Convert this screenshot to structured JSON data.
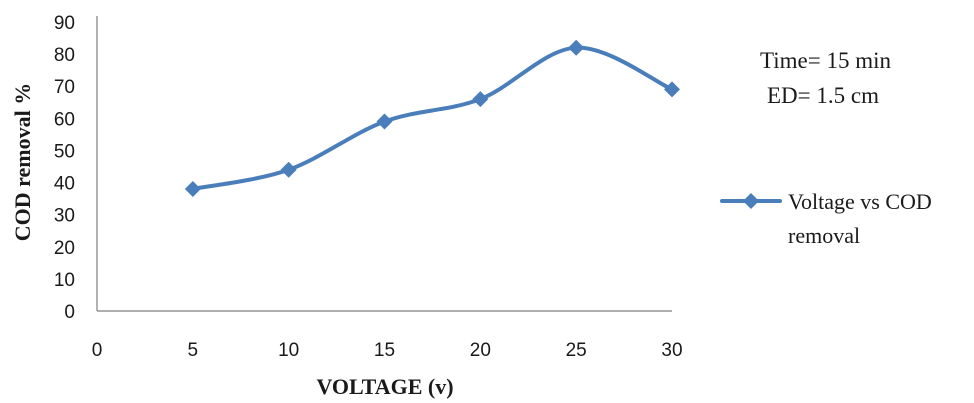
{
  "chart_data": {
    "type": "line",
    "xlabel": "VOLTAGE (v)",
    "ylabel": "COD  removal %",
    "xlim": [
      0,
      30
    ],
    "ylim": [
      0,
      90
    ],
    "x_ticks": [
      "0",
      "5",
      "10",
      "15",
      "20",
      "25",
      "30"
    ],
    "y_ticks": [
      "0",
      "10",
      "20",
      "30",
      "40",
      "50",
      "60",
      "70",
      "80",
      "90"
    ],
    "grid": false,
    "legend_position": "right",
    "series": [
      {
        "name_lines": [
          "Voltage vs COD",
          "removal"
        ],
        "color": "#4a7ebb",
        "marker": "diamond",
        "x": [
          5,
          10,
          15,
          20,
          25,
          30
        ],
        "y": [
          38,
          44,
          59,
          66,
          82,
          69
        ]
      }
    ],
    "annotations": [
      "Time= 15 min",
      "ED= 1.5 cm"
    ]
  }
}
